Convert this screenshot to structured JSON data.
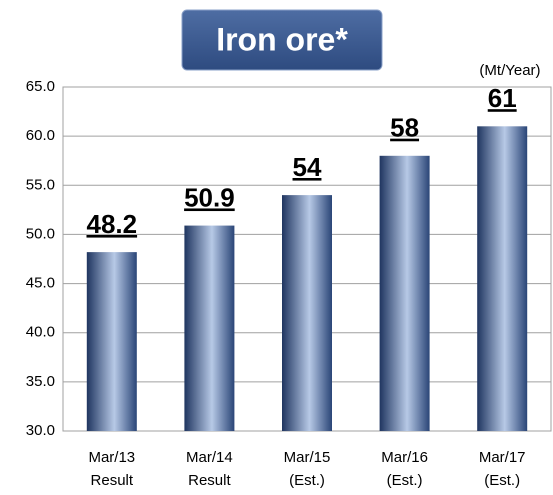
{
  "chart_data": {
    "type": "bar",
    "title": "Iron ore*",
    "unit_label": "(Mt/Year)",
    "categories": [
      [
        "Mar/13",
        "Result"
      ],
      [
        "Mar/14",
        "Result"
      ],
      [
        "Mar/15",
        "(Est.)"
      ],
      [
        "Mar/16",
        "(Est.)"
      ],
      [
        "Mar/17",
        "(Est.)"
      ]
    ],
    "values": [
      48.2,
      50.9,
      54,
      58,
      61
    ],
    "color": "#6f8fc0",
    "ylim": [
      30,
      65
    ],
    "yticks": [
      {
        "value": 30,
        "label": "30.0"
      },
      {
        "value": 35,
        "label": "35.0"
      },
      {
        "value": 40,
        "label": "40.0"
      },
      {
        "value": 45,
        "label": "45.0"
      },
      {
        "value": 50,
        "label": "50.0"
      },
      {
        "value": 55,
        "label": "55.0"
      },
      {
        "value": 60,
        "label": "60.0"
      },
      {
        "value": 65,
        "label": "65.0"
      }
    ],
    "grid": true
  }
}
